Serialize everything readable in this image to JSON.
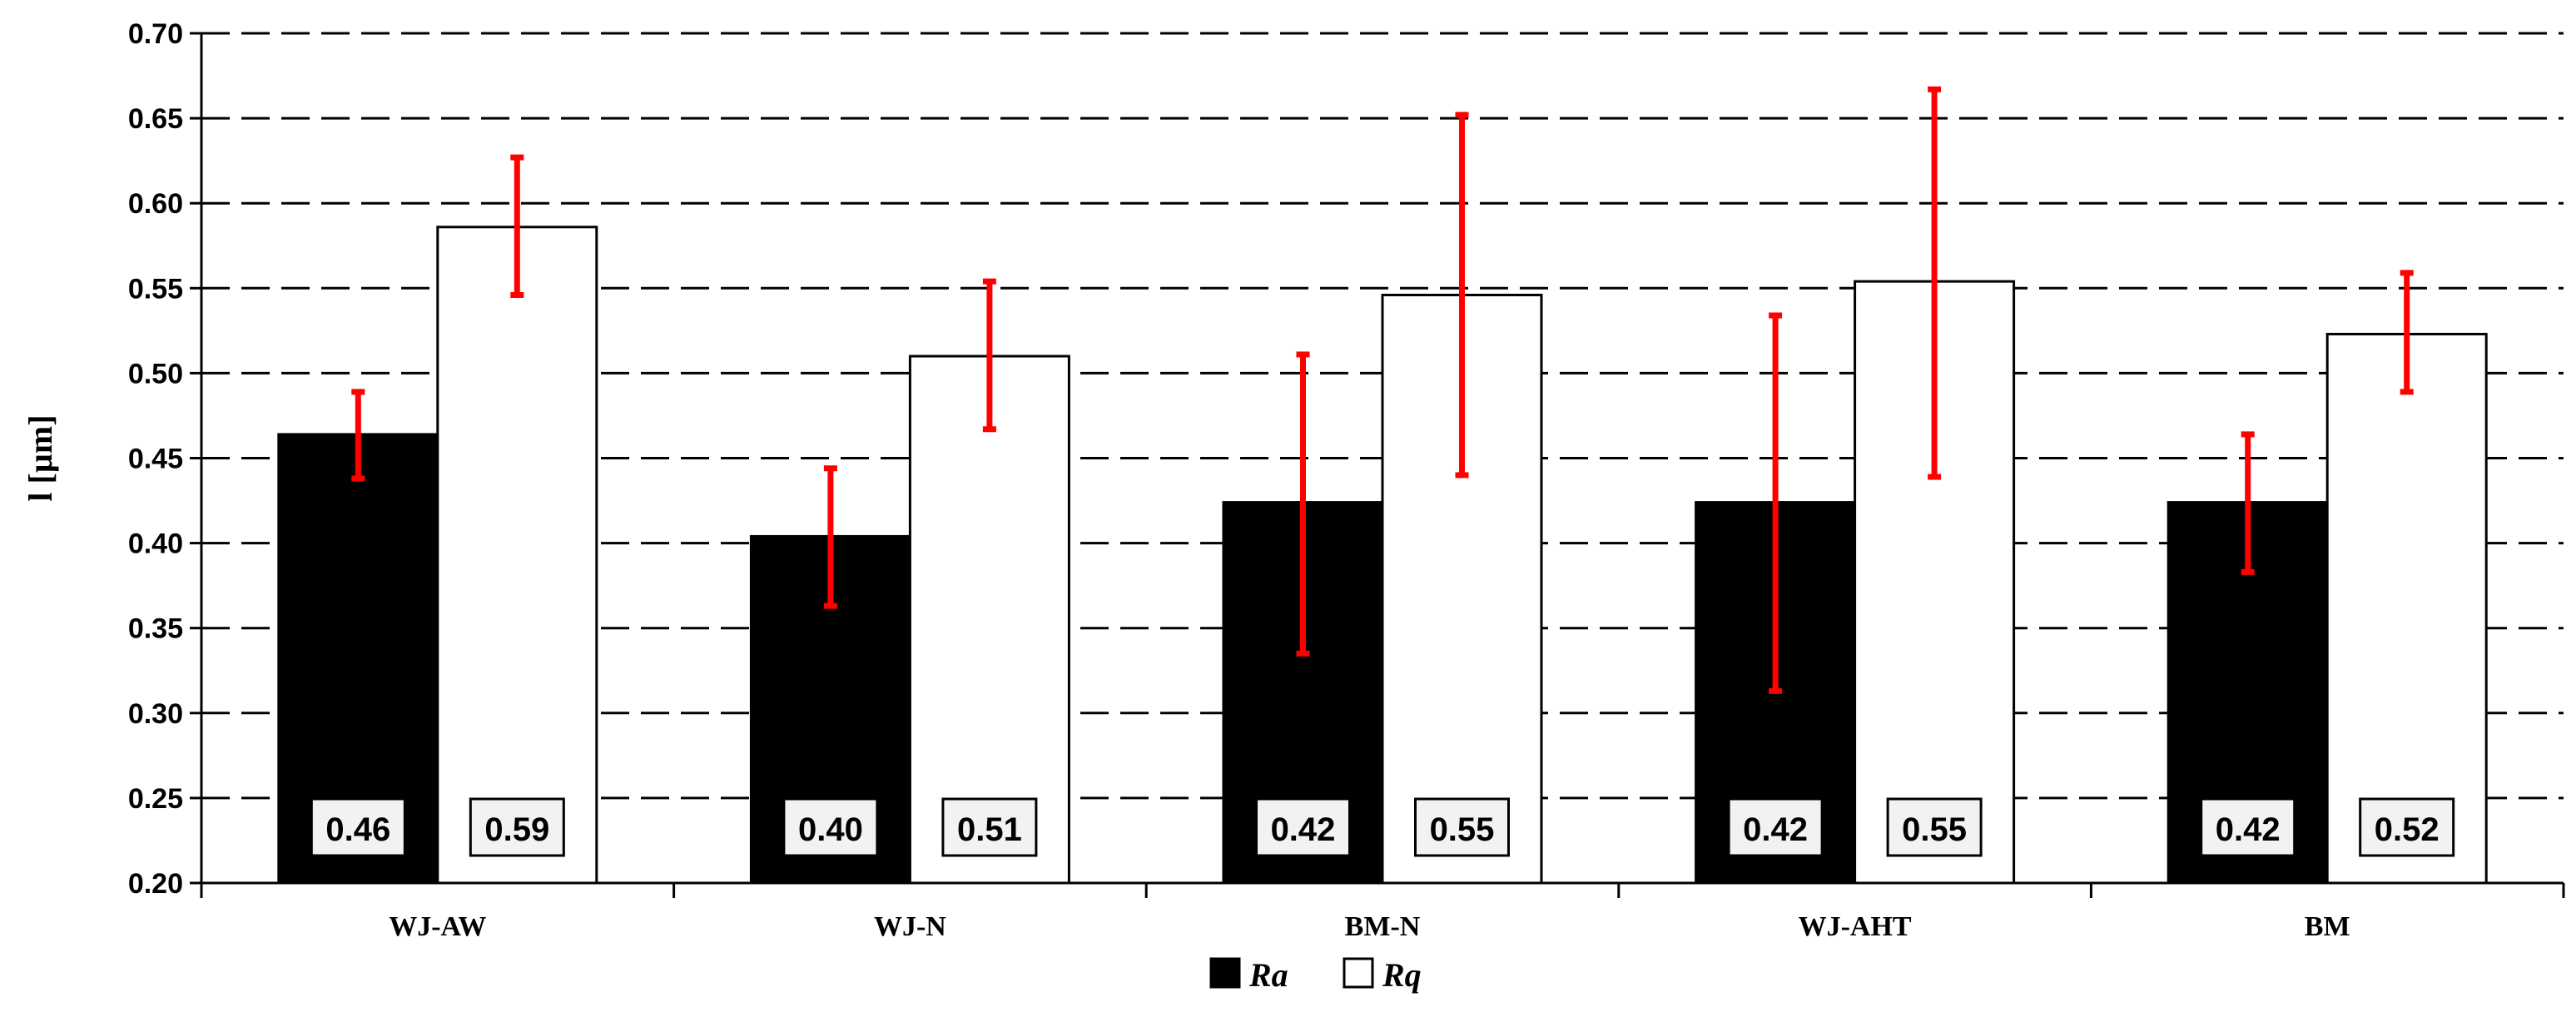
{
  "chart_data": {
    "type": "bar",
    "title": "",
    "xlabel": "",
    "ylabel": "l [µm]",
    "ylim": [
      0.2,
      0.7
    ],
    "ytick_step": 0.05,
    "yticks": [
      "0.20",
      "0.25",
      "0.30",
      "0.35",
      "0.40",
      "0.45",
      "0.50",
      "0.55",
      "0.60",
      "0.65",
      "0.70"
    ],
    "grid": "horizontal dashed",
    "legend_position": "bottom-center",
    "categories": [
      "WJ-AW",
      "WJ-N",
      "BM-N",
      "WJ-AHT",
      "BM"
    ],
    "series": [
      {
        "name": "Ra",
        "color": "#000000",
        "values": [
          0.464,
          0.404,
          0.424,
          0.424,
          0.424
        ],
        "labels": [
          "0.46",
          "0.40",
          "0.42",
          "0.42",
          "0.42"
        ],
        "error_low": [
          0.438,
          0.363,
          0.335,
          0.313,
          0.383
        ],
        "error_high": [
          0.489,
          0.444,
          0.511,
          0.534,
          0.464
        ]
      },
      {
        "name": "Rq",
        "color": "#ffffff",
        "values": [
          0.586,
          0.51,
          0.546,
          0.554,
          0.523
        ],
        "labels": [
          "0.59",
          "0.51",
          "0.55",
          "0.55",
          "0.52"
        ],
        "error_low": [
          0.546,
          0.467,
          0.44,
          0.439,
          0.489
        ],
        "error_high": [
          0.627,
          0.554,
          0.652,
          0.667,
          0.559
        ]
      }
    ],
    "error_bar_color": "#ff0000"
  }
}
